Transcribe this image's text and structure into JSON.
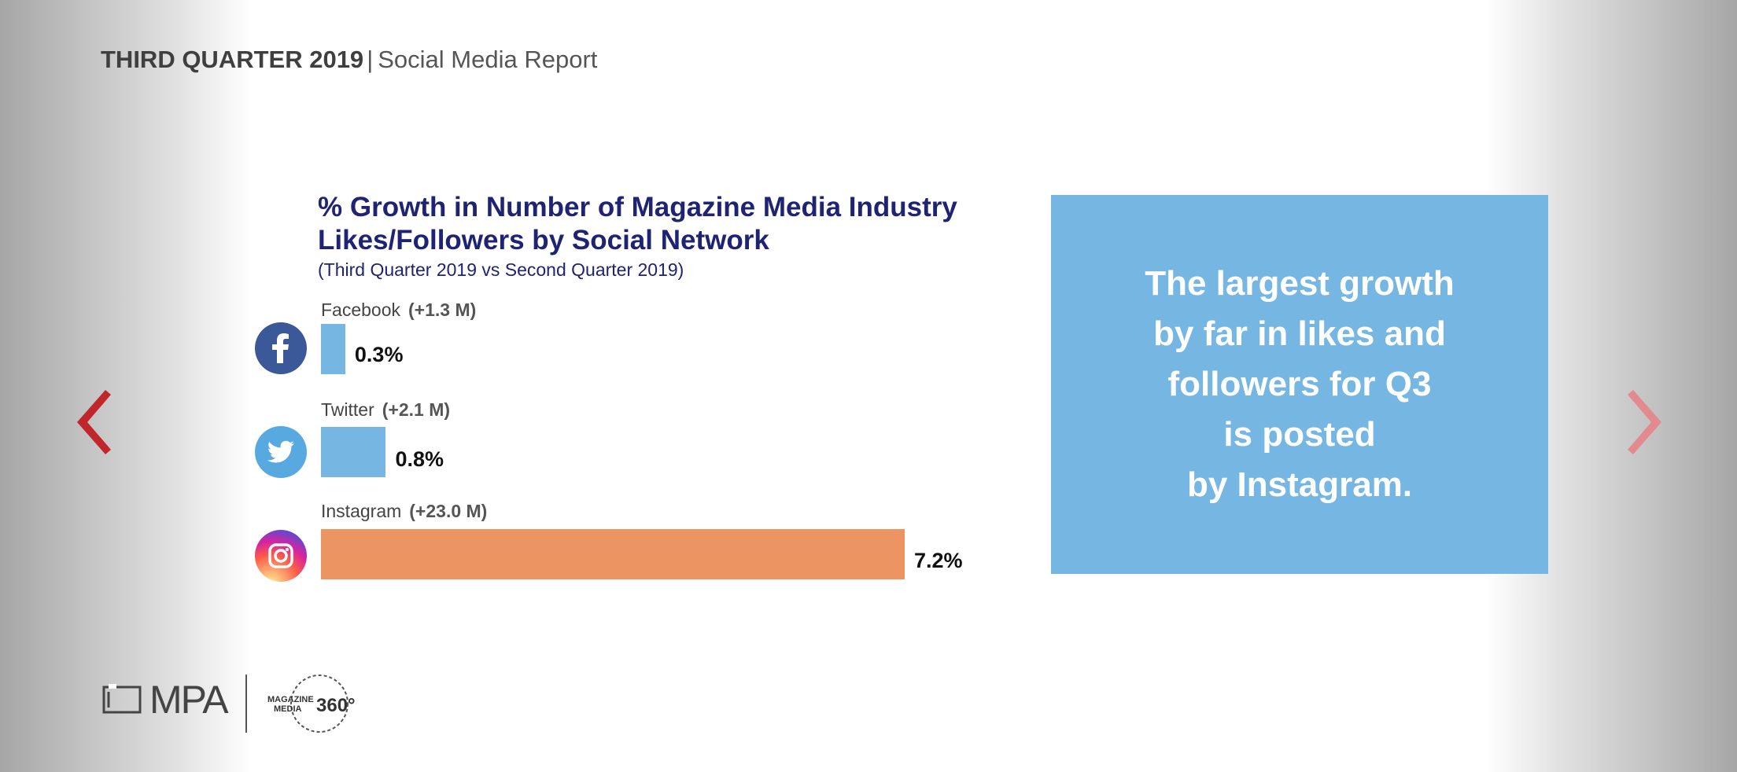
{
  "header": {
    "title_bold": "THIRD QUARTER 2019",
    "separator": "|",
    "title_rest": "Social Media Report"
  },
  "colors": {
    "title": "#1f2373",
    "facebook_bar": "#76b6e3",
    "twitter_bar": "#76b6e3",
    "instagram_bar": "#ec9462",
    "callout_bg": "#76b6e3",
    "arrow_prev": "#c0272d",
    "arrow_next": "#e38a8f"
  },
  "chart_data": {
    "type": "bar",
    "orientation": "horizontal",
    "title": "% Growth in Number of Magazine Media Industry Likes/Followers by Social Network",
    "subtitle": "(Third Quarter 2019 vs Second Quarter 2019)",
    "categories": [
      "Facebook",
      "Twitter",
      "Instagram"
    ],
    "deltas": [
      "(+1.3 M)",
      "(+2.1 M)",
      "(+23.0 M)"
    ],
    "values": [
      0.3,
      0.8,
      7.2
    ],
    "value_labels": [
      "0.3%",
      "0.8%",
      "7.2%"
    ],
    "icons": [
      "facebook-icon",
      "twitter-icon",
      "instagram-icon"
    ],
    "xlim": [
      0,
      7.2
    ]
  },
  "callout": {
    "lines": [
      "The largest growth",
      "by far in likes and",
      "followers for Q3",
      "is posted",
      "by Instagram."
    ]
  },
  "footer": {
    "mpa_logo_text": "MPA",
    "mm_logo_line1": "MAGAZINE",
    "mm_logo_line2": "MEDIA",
    "mm_logo_360": "360°"
  },
  "icons": {
    "prev": "chevron-left-icon",
    "next": "chevron-right-icon"
  }
}
